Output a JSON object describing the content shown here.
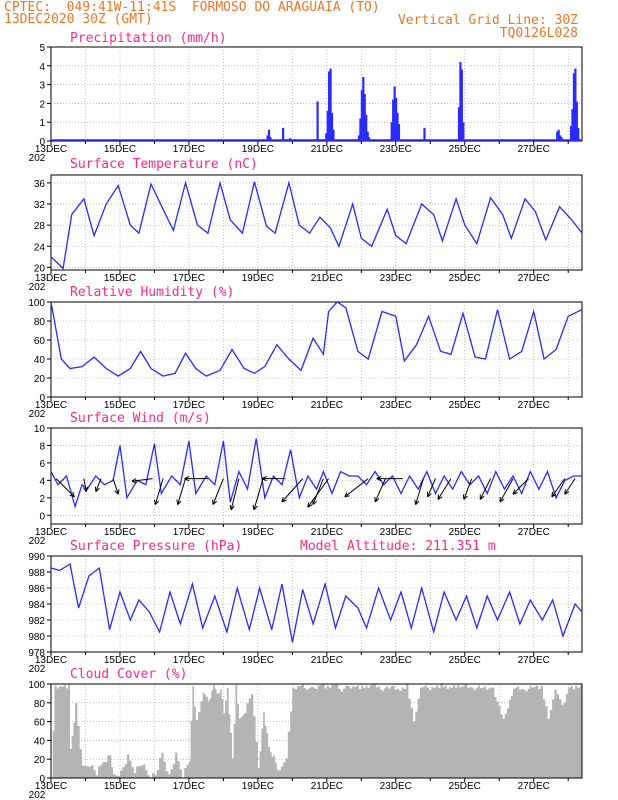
{
  "header": {
    "line1": "CPTEC:  049:41W-11:41S  FORMOSO DO ARAGUAIA (TO)",
    "line2": "13DEC2020 30Z (GMT)",
    "grid_note": "Vertical Grid Line: 30Z",
    "code": "TQ0126L028"
  },
  "x_axis": {
    "labels": [
      "13DEC",
      "15DEC",
      "17DEC",
      "19DEC",
      "21DEC",
      "23DEC",
      "25DEC",
      "27DEC"
    ],
    "year_stub": "202"
  },
  "chart_data": [
    {
      "id": "precip",
      "type": "bar",
      "title": "Precipitation (mm/h)",
      "ylim": [
        0,
        5
      ],
      "yticks": [
        0,
        1,
        2,
        3,
        4,
        5
      ],
      "color": "#2b2bff",
      "events": [
        {
          "day": 0.1,
          "values": [
            0.05,
            0.05,
            0.05
          ]
        },
        {
          "day": 6.25,
          "values": [
            0.3,
            0.6,
            0.2
          ]
        },
        {
          "day": 6.7,
          "values": [
            0.7
          ]
        },
        {
          "day": 6.9,
          "values": [
            0.15
          ]
        },
        {
          "day": 7.7,
          "values": [
            2.1
          ]
        },
        {
          "day": 7.95,
          "values": [
            0.4,
            1.6,
            3.7,
            3.85,
            1.5,
            0.6
          ]
        },
        {
          "day": 8.9,
          "values": [
            0.3,
            1.2,
            2.7,
            3.4,
            2.5,
            1.4,
            0.5,
            0.2
          ]
        },
        {
          "day": 9.85,
          "values": [
            1.0,
            2.2,
            2.9,
            2.3,
            1.5,
            0.9
          ]
        },
        {
          "day": 10.8,
          "values": [
            0.7
          ]
        },
        {
          "day": 11.8,
          "values": [
            1.8,
            4.2,
            3.8,
            1.0
          ]
        },
        {
          "day": 14.65,
          "values": [
            0.5,
            0.6,
            0.3,
            0.2
          ]
        },
        {
          "day": 15.05,
          "values": [
            0.8,
            1.7,
            3.6,
            3.85,
            2.1,
            0.7
          ]
        }
      ]
    },
    {
      "id": "temp",
      "type": "line",
      "title": "Surface Temperature (nC)",
      "ylim": [
        19.5,
        37.5
      ],
      "yticks": [
        20,
        24,
        28,
        32,
        36
      ],
      "color": "#2b2bff",
      "x": [
        0,
        0.35,
        0.6,
        0.95,
        1.25,
        1.6,
        1.95,
        2.3,
        2.55,
        2.9,
        3.25,
        3.55,
        3.9,
        4.25,
        4.55,
        4.9,
        5.2,
        5.55,
        5.9,
        6.25,
        6.5,
        6.9,
        7.2,
        7.5,
        7.8,
        8.1,
        8.35,
        8.75,
        9.0,
        9.3,
        9.75,
        10.0,
        10.3,
        10.75,
        11.1,
        11.35,
        11.75,
        12.0,
        12.35,
        12.75,
        13.1,
        13.35,
        13.75,
        14.05,
        14.35,
        14.75,
        15.1,
        15.4
      ],
      "values": [
        22,
        19.8,
        30,
        33,
        26,
        32,
        35.5,
        28,
        26.5,
        35.8,
        31,
        27,
        36,
        28,
        26.5,
        36,
        29,
        26.5,
        36.2,
        27.8,
        26.5,
        36,
        28,
        26.5,
        29.5,
        27.5,
        24,
        32,
        25.5,
        24,
        31,
        26,
        24.5,
        32,
        30,
        25,
        33,
        28,
        24.5,
        33.2,
        30,
        25.5,
        33,
        30.5,
        25.2,
        31.5,
        29,
        26.5
      ]
    },
    {
      "id": "rh",
      "type": "line",
      "title": "Relative Humidity (%)",
      "ylim": [
        0,
        100
      ],
      "yticks": [
        0,
        20,
        40,
        60,
        80,
        100
      ],
      "color": "#2b2bff",
      "x": [
        0,
        0.3,
        0.55,
        0.9,
        1.25,
        1.6,
        1.95,
        2.3,
        2.6,
        2.9,
        3.25,
        3.6,
        3.9,
        4.2,
        4.5,
        4.9,
        5.25,
        5.6,
        5.9,
        6.2,
        6.55,
        6.9,
        7.25,
        7.6,
        7.9,
        8.05,
        8.3,
        8.55,
        8.9,
        9.2,
        9.6,
        10.0,
        10.25,
        10.6,
        10.95,
        11.3,
        11.6,
        11.95,
        12.3,
        12.6,
        12.95,
        13.3,
        13.65,
        14.0,
        14.3,
        14.65,
        15.0,
        15.4
      ],
      "values": [
        100,
        40,
        30,
        32,
        42,
        30,
        22,
        30,
        48,
        30,
        22,
        25,
        46,
        30,
        22,
        28,
        50,
        30,
        25,
        32,
        55,
        40,
        28,
        62,
        45,
        90,
        100,
        94,
        48,
        40,
        90,
        85,
        38,
        55,
        85,
        48,
        45,
        88,
        42,
        40,
        92,
        40,
        48,
        90,
        40,
        50,
        85,
        92
      ]
    },
    {
      "id": "wind",
      "type": "line",
      "title": "Surface Wind (m/s)",
      "ylim": [
        -1,
        10
      ],
      "yticks": [
        0,
        2,
        4,
        6,
        8,
        10
      ],
      "color": "#2b2bff",
      "x": [
        0,
        0.2,
        0.45,
        0.7,
        0.9,
        1.05,
        1.3,
        1.55,
        1.8,
        2.0,
        2.2,
        2.5,
        2.75,
        3.0,
        3.2,
        3.5,
        3.75,
        4.0,
        4.2,
        4.5,
        4.75,
        5.0,
        5.2,
        5.45,
        5.7,
        5.95,
        6.2,
        6.45,
        6.7,
        6.95,
        7.2,
        7.45,
        7.7,
        7.9,
        8.15,
        8.4,
        8.65,
        8.9,
        9.15,
        9.4,
        9.65,
        9.9,
        10.15,
        10.4,
        10.65,
        10.9,
        11.15,
        11.4,
        11.65,
        11.9,
        12.15,
        12.4,
        12.65,
        12.9,
        13.15,
        13.4,
        13.65,
        13.9,
        14.15,
        14.4,
        14.65,
        14.9,
        15.15,
        15.4
      ],
      "values": [
        5,
        3.5,
        4.5,
        1,
        3.5,
        3,
        4.5,
        3.5,
        4,
        8,
        2,
        4,
        3.5,
        8.2,
        2.5,
        4.5,
        3.5,
        8.5,
        2.5,
        4.5,
        3.5,
        8.5,
        1.5,
        5,
        3,
        8.8,
        2,
        4.5,
        3.5,
        7.5,
        2,
        4.5,
        3,
        5,
        2.5,
        5,
        4.5,
        4.5,
        3.5,
        5,
        3.5,
        4.5,
        2.5,
        4.5,
        3,
        5,
        2.5,
        4.5,
        3,
        5,
        3.5,
        4.5,
        2.5,
        5,
        3,
        4.5,
        2.5,
        5,
        3,
        5,
        2,
        4,
        4.5,
        4.5
      ],
      "arrows": [
        {
          "day": 0.15,
          "u": 0.7,
          "v": -0.7
        },
        {
          "day": 0.95,
          "u": 0.1,
          "v": -0.5
        },
        {
          "day": 1.45,
          "u": -0.2,
          "v": -0.5
        },
        {
          "day": 1.8,
          "u": 0.2,
          "v": -0.6
        },
        {
          "day": 2.95,
          "u": -0.8,
          "v": -0.1
        },
        {
          "day": 3.25,
          "u": -0.3,
          "v": -1.0
        },
        {
          "day": 3.9,
          "u": -0.3,
          "v": -1.0
        },
        {
          "day": 4.55,
          "u": -0.9,
          "v": 0.0
        },
        {
          "day": 5.0,
          "u": -0.4,
          "v": -1.0
        },
        {
          "day": 5.45,
          "u": -0.3,
          "v": -1.2
        },
        {
          "day": 6.15,
          "u": -0.35,
          "v": -1.2
        },
        {
          "day": 6.8,
          "u": -0.9,
          "v": 0.0
        },
        {
          "day": 7.3,
          "u": -0.8,
          "v": -0.9
        },
        {
          "day": 7.9,
          "u": -0.4,
          "v": -1.0
        },
        {
          "day": 8.05,
          "u": -0.8,
          "v": -1.1
        },
        {
          "day": 9.2,
          "u": -0.9,
          "v": -0.7
        },
        {
          "day": 9.7,
          "u": -0.4,
          "v": -0.9
        },
        {
          "day": 10.2,
          "u": -1.0,
          "v": 0.0
        },
        {
          "day": 10.8,
          "u": -0.3,
          "v": -1.0
        },
        {
          "day": 11.15,
          "u": -0.3,
          "v": -0.7
        },
        {
          "day": 11.6,
          "u": -0.5,
          "v": -0.8
        },
        {
          "day": 12.2,
          "u": -0.3,
          "v": -0.8
        },
        {
          "day": 12.75,
          "u": -0.4,
          "v": -0.8
        },
        {
          "day": 13.4,
          "u": -0.5,
          "v": -0.9
        },
        {
          "day": 13.85,
          "u": -0.6,
          "v": -0.6
        },
        {
          "day": 14.9,
          "u": -0.5,
          "v": -0.7
        },
        {
          "day": 15.2,
          "u": -0.4,
          "v": -0.6
        }
      ]
    },
    {
      "id": "pressure",
      "type": "line",
      "title": "Surface Pressure (hPa)",
      "subtitle": "Model Altitude: 211.351 m",
      "ylim": [
        978,
        990
      ],
      "yticks": [
        978,
        980,
        982,
        984,
        986,
        988,
        990
      ],
      "color": "#2b2bff",
      "x": [
        0,
        0.25,
        0.55,
        0.8,
        1.1,
        1.4,
        1.7,
        2.0,
        2.3,
        2.55,
        2.85,
        3.15,
        3.45,
        3.75,
        4.1,
        4.4,
        4.75,
        5.1,
        5.4,
        5.75,
        6.05,
        6.4,
        6.7,
        7.0,
        7.3,
        7.6,
        7.95,
        8.25,
        8.55,
        8.9,
        9.15,
        9.5,
        9.85,
        10.15,
        10.45,
        10.75,
        11.1,
        11.4,
        11.75,
        12.05,
        12.35,
        12.65,
        12.95,
        13.3,
        13.6,
        13.9,
        14.25,
        14.55,
        14.85,
        15.2,
        15.4
      ],
      "values": [
        988.5,
        988.2,
        989,
        983.5,
        987.5,
        988.5,
        980.8,
        985.5,
        982,
        984.5,
        983,
        980.5,
        985.5,
        981.5,
        986.5,
        981,
        985,
        980.5,
        986,
        980.8,
        986,
        980.8,
        986.5,
        979.2,
        985.8,
        981.5,
        986.5,
        981,
        985,
        983.5,
        981,
        986,
        982,
        985.5,
        981,
        986,
        980.5,
        985.5,
        982,
        985,
        981,
        985,
        982,
        985.5,
        981.5,
        984.5,
        982,
        984.5,
        980,
        984,
        983
      ]
    },
    {
      "id": "cloud",
      "type": "area",
      "title": "Cloud Cover (%)",
      "ylim": [
        0,
        100
      ],
      "yticks": [
        0,
        20,
        40,
        60,
        80,
        100
      ],
      "color": "#b4b4b4",
      "x": [
        0,
        0.1,
        0.3,
        0.5,
        0.55,
        0.7,
        0.9,
        1.1,
        1.3,
        1.5,
        1.7,
        1.8,
        2.0,
        2.2,
        2.4,
        2.6,
        2.8,
        3.0,
        3.2,
        3.4,
        3.6,
        3.8,
        4.0,
        4.1,
        4.2,
        4.4,
        4.55,
        4.7,
        4.8,
        4.9,
        5.0,
        5.1,
        5.25,
        5.35,
        5.45,
        5.6,
        5.8,
        6.0,
        6.15,
        6.3,
        6.45,
        6.6,
        6.8,
        7.0,
        7.2,
        7.4,
        7.6,
        7.8,
        8.0,
        8.2,
        8.4,
        8.6,
        8.8,
        9.0,
        9.3,
        9.6,
        9.9,
        10.1,
        10.3,
        10.5,
        10.7,
        10.9,
        11.1,
        11.3,
        11.6,
        11.9,
        12.2,
        12.5,
        12.8,
        13.1,
        13.4,
        13.7,
        14.0,
        14.2,
        14.4,
        14.6,
        14.8,
        15.0,
        15.2,
        15.4
      ],
      "values": [
        0,
        97,
        98,
        97,
        30,
        78,
        10,
        15,
        5,
        18,
        24,
        3,
        6,
        22,
        8,
        15,
        4,
        3,
        26,
        2,
        24,
        3,
        20,
        96,
        62,
        93,
        80,
        100,
        88,
        94,
        70,
        95,
        20,
        97,
        60,
        72,
        88,
        12,
        70,
        32,
        22,
        5,
        24,
        94,
        98,
        96,
        95,
        100,
        96,
        99,
        94,
        97,
        98,
        96,
        99,
        95,
        97,
        94,
        98,
        60,
        98,
        95,
        97,
        98,
        96,
        99,
        95,
        97,
        94,
        60,
        97,
        93,
        98,
        96,
        62,
        96,
        75,
        97,
        96,
        98
      ]
    }
  ]
}
